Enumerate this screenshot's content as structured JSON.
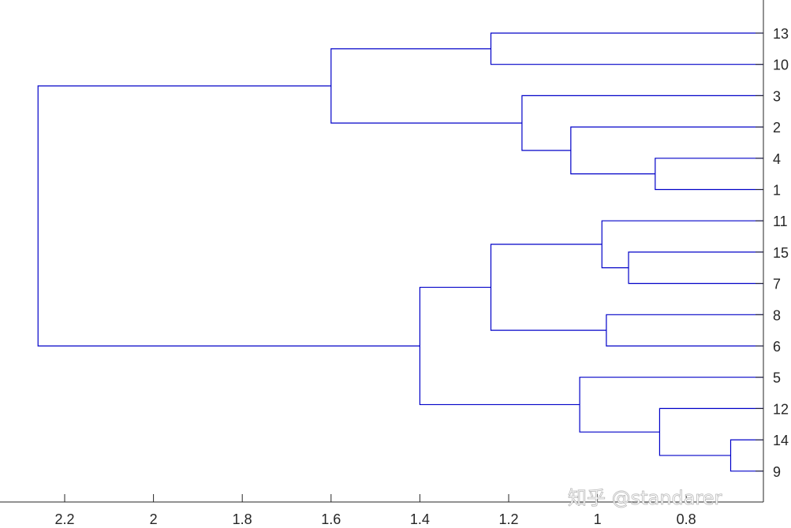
{
  "chart_data": {
    "type": "dendrogram",
    "orientation": "left",
    "xlim": [
      2.3,
      0.65
    ],
    "x_ticks": [
      "2.2",
      "2",
      "1.8",
      "1.6",
      "1.4",
      "1.2",
      "1",
      "0.8"
    ],
    "x_tick_values": [
      2.2,
      2.0,
      1.8,
      1.6,
      1.4,
      1.2,
      1.0,
      0.8
    ],
    "leaves": [
      "13",
      "10",
      "3",
      "2",
      "4",
      "1",
      "11",
      "15",
      "7",
      "8",
      "6",
      "5",
      "12",
      "14",
      "9"
    ],
    "merges": [
      {
        "a": "13",
        "b": "10",
        "height": 1.24
      },
      {
        "a": "4",
        "b": "1",
        "height": 0.87
      },
      {
        "a": "2",
        "b": "4+1",
        "height": 1.06
      },
      {
        "a": "3",
        "b": "2+4+1",
        "height": 1.17
      },
      {
        "a": "13+10",
        "b": "3+2+4+1",
        "height": 1.6
      },
      {
        "a": "15",
        "b": "7",
        "height": 0.93
      },
      {
        "a": "11",
        "b": "15+7",
        "height": 0.99
      },
      {
        "a": "8",
        "b": "6",
        "height": 0.98
      },
      {
        "a": "11+15+7",
        "b": "8+6",
        "height": 1.24
      },
      {
        "a": "14",
        "b": "9",
        "height": 0.7
      },
      {
        "a": "12",
        "b": "14+9",
        "height": 0.86
      },
      {
        "a": "5",
        "b": "12+14+9",
        "height": 1.04
      },
      {
        "a": "11+15+7+8+6",
        "b": "5+12+14+9",
        "height": 1.4
      },
      {
        "a": "13+10+3+2+4+1",
        "b": "11+15+7+8+6+5+12+14+9",
        "height": 2.26
      }
    ],
    "line_color": "#0000c8",
    "grid": false
  },
  "watermark": "知乎 @standarer"
}
